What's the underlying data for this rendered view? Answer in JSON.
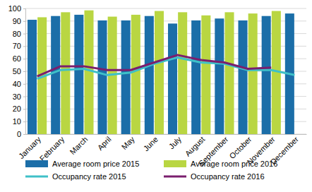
{
  "chart_data": {
    "type": "bar",
    "categories": [
      "January",
      "February",
      "March",
      "April",
      "May",
      "June",
      "July",
      "August",
      "September",
      "October",
      "November",
      "December"
    ],
    "series": [
      {
        "name": "Average room price 2015",
        "color": "#1b6ea8",
        "type": "bar",
        "values": [
          91,
          94,
          95,
          90.5,
          90.5,
          94,
          88,
          90.5,
          92,
          90.5,
          94,
          96
        ]
      },
      {
        "name": "Average room price 2016",
        "color": "#b9d642",
        "type": "bar",
        "values": [
          93,
          97,
          98.5,
          93.5,
          95,
          98,
          97,
          94.5,
          97,
          96,
          98,
          null
        ]
      },
      {
        "name": "Occupancy rate 2015",
        "color": "#3fc0c8",
        "type": "line",
        "values": [
          44,
          51,
          52,
          47,
          49,
          56,
          61,
          57,
          56,
          51,
          51,
          47
        ]
      },
      {
        "name": "Occupancy rate 2016",
        "color": "#7a1f6e",
        "type": "line",
        "values": [
          46,
          54,
          54,
          51,
          51,
          57,
          63,
          59,
          57,
          52,
          53,
          null
        ]
      }
    ],
    "ylim": [
      0,
      100
    ],
    "yticks": [
      0,
      10,
      20,
      30,
      40,
      50,
      60,
      70,
      80,
      90,
      100
    ],
    "grid": true,
    "legend": "bottom"
  }
}
